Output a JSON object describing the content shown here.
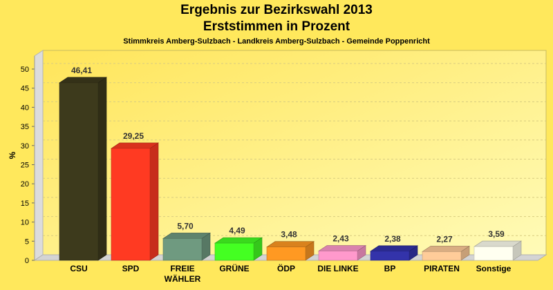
{
  "chart_data": {
    "type": "bar",
    "title": "Ergebnis zur Bezirkswahl 2013",
    "subtitle": "Erststimmen in Prozent",
    "caption": "Stimmkreis Amberg-Sulzbach - Landkreis Amberg-Sulzbach - Gemeinde Poppenricht",
    "xlabel": "",
    "ylabel": "%",
    "ylim": [
      0,
      50
    ],
    "yticks": [
      0,
      5,
      10,
      15,
      20,
      25,
      30,
      35,
      40,
      45,
      50
    ],
    "grid": true,
    "style": "3d",
    "categories": [
      "CSU",
      "SPD",
      "FREIE WÄHLER",
      "GRÜNE",
      "ÖDP",
      "DIE LINKE",
      "BP",
      "PIRATEN",
      "Sonstige"
    ],
    "values": [
      46.41,
      29.25,
      5.7,
      4.49,
      3.48,
      2.43,
      2.38,
      2.27,
      3.59
    ],
    "value_labels": [
      "46,41",
      "29,25",
      "5,70",
      "4,49",
      "3,48",
      "2,43",
      "2,38",
      "2,27",
      "3,59"
    ],
    "colors": [
      "#3d3a1c",
      "#ff3a22",
      "#6f9a80",
      "#44ff22",
      "#ff9922",
      "#ff99cc",
      "#3333aa",
      "#ffcc99",
      "#fffff0"
    ]
  }
}
